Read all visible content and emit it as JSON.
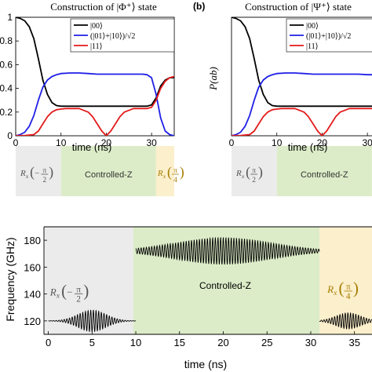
{
  "colors": {
    "black": "#000000",
    "blue": "#1f1fe6",
    "red": "#e41a1a",
    "gray_band": "#ebebeb",
    "green_band": "#dcecc8",
    "yellow_band": "#fbefcc",
    "rx_text": "#555555",
    "rx4_text": "#a77c00"
  },
  "labels": {
    "rx_neg": "Rx(−π/2)",
    "controlled_z": "Controlled-Z",
    "rx_pos": "Rx(π/4)",
    "panel_b_tag": "(b)",
    "panel_b_ylabel": "P(ab)"
  },
  "chart_data": [
    {
      "type": "line",
      "title": "Construction of |Φ⁺⟩ state",
      "xlabel": "time (ns)",
      "ylabel": "",
      "xlim": [
        0,
        35
      ],
      "ylim": [
        0,
        1
      ],
      "xticks": [
        0,
        10,
        20,
        30
      ],
      "yticks": [
        0,
        0.2,
        0.4,
        0.6,
        0.8,
        1
      ],
      "ytick_labels": [
        "0",
        "0.2",
        "0.4",
        "0.6",
        "0.8",
        "1"
      ],
      "legend_position": "top-right",
      "grid": false,
      "gate_bands": [
        {
          "label": "Rx(−π/2)",
          "start": 0,
          "end": 10
        },
        {
          "label": "Controlled-Z",
          "start": 10,
          "end": 31
        },
        {
          "label": "Rx(π/4)",
          "start": 31,
          "end": 35
        }
      ],
      "series": [
        {
          "name": "|00⟩",
          "color": "#000000",
          "x": [
            0,
            1,
            2,
            3,
            4,
            5,
            6,
            7,
            8,
            9,
            10,
            12,
            14,
            16,
            18,
            20,
            22,
            24,
            26,
            28,
            29,
            30,
            31,
            32,
            33,
            34,
            35
          ],
          "y": [
            1,
            0.99,
            0.97,
            0.92,
            0.82,
            0.65,
            0.47,
            0.35,
            0.28,
            0.255,
            0.25,
            0.25,
            0.25,
            0.25,
            0.25,
            0.25,
            0.25,
            0.25,
            0.25,
            0.25,
            0.25,
            0.26,
            0.32,
            0.42,
            0.47,
            0.49,
            0.49
          ]
        },
        {
          "name": "(|01⟩+|10⟩)/√2",
          "color": "#1f1fe6",
          "x": [
            0,
            1,
            2,
            3,
            4,
            5,
            6,
            7,
            8,
            9,
            10,
            12,
            14,
            16,
            18,
            20,
            22,
            24,
            26,
            28,
            29,
            30,
            31,
            32,
            33,
            34,
            35
          ],
          "y": [
            0,
            0.01,
            0.03,
            0.08,
            0.17,
            0.3,
            0.41,
            0.47,
            0.5,
            0.515,
            0.525,
            0.53,
            0.53,
            0.525,
            0.52,
            0.52,
            0.52,
            0.52,
            0.52,
            0.52,
            0.515,
            0.49,
            0.35,
            0.15,
            0.04,
            0.01,
            0
          ]
        },
        {
          "name": "|11⟩",
          "color": "#e41a1a",
          "x": [
            0,
            2,
            4,
            5,
            6,
            7,
            8,
            9,
            10,
            11,
            12,
            14,
            16,
            17,
            18,
            19,
            20,
            21,
            22,
            23,
            24,
            26,
            28,
            29,
            30,
            31,
            32,
            33,
            34,
            35
          ],
          "y": [
            0,
            0.002,
            0.01,
            0.04,
            0.1,
            0.16,
            0.2,
            0.22,
            0.225,
            0.23,
            0.23,
            0.23,
            0.2,
            0.16,
            0.1,
            0.04,
            0.0,
            0.04,
            0.1,
            0.16,
            0.2,
            0.23,
            0.23,
            0.23,
            0.24,
            0.3,
            0.4,
            0.46,
            0.49,
            0.5
          ]
        }
      ]
    },
    {
      "type": "line",
      "title": "Construction of |Ψ⁺⟩ state",
      "xlabel": "time (ns)",
      "ylabel": "P(ab)",
      "xlim": [
        0,
        35
      ],
      "ylim": [
        0,
        1
      ],
      "xticks": [
        0,
        10,
        20,
        30
      ],
      "legend_position": "top-right",
      "grid": false,
      "gate_bands": [
        {
          "label": "Rx(π/2)",
          "start": 0,
          "end": 10
        },
        {
          "label": "Controlled-Z",
          "start": 10,
          "end": 31
        },
        {
          "label": "Rx(π/4)",
          "start": 31,
          "end": 35
        }
      ],
      "series": [
        {
          "name": "|00⟩",
          "color": "#000000",
          "x": [
            0,
            1,
            2,
            3,
            4,
            5,
            6,
            7,
            8,
            9,
            10,
            12,
            14,
            16,
            18,
            20,
            22,
            24,
            26,
            28,
            30,
            32,
            34
          ],
          "y": [
            1,
            0.99,
            0.97,
            0.92,
            0.82,
            0.65,
            0.47,
            0.35,
            0.28,
            0.255,
            0.25,
            0.25,
            0.25,
            0.25,
            0.25,
            0.25,
            0.25,
            0.25,
            0.25,
            0.25,
            0.25,
            0.25,
            0.25
          ]
        },
        {
          "name": "(|01⟩+|10⟩)/√2",
          "color": "#1f1fe6",
          "x": [
            0,
            1,
            2,
            3,
            4,
            5,
            6,
            7,
            8,
            9,
            10,
            12,
            14,
            16,
            18,
            20,
            22,
            24,
            26,
            28,
            30,
            32,
            34
          ],
          "y": [
            0,
            0.01,
            0.03,
            0.08,
            0.17,
            0.3,
            0.41,
            0.47,
            0.5,
            0.515,
            0.525,
            0.53,
            0.53,
            0.525,
            0.52,
            0.52,
            0.52,
            0.52,
            0.52,
            0.52,
            0.515,
            0.515,
            0.515
          ]
        },
        {
          "name": "|11⟩",
          "color": "#e41a1a",
          "x": [
            0,
            2,
            4,
            5,
            6,
            7,
            8,
            9,
            10,
            11,
            12,
            14,
            16,
            17,
            18,
            19,
            20,
            21,
            22,
            23,
            24,
            26,
            28,
            30,
            32,
            34
          ],
          "y": [
            0,
            0.002,
            0.01,
            0.04,
            0.1,
            0.16,
            0.2,
            0.22,
            0.225,
            0.23,
            0.23,
            0.23,
            0.2,
            0.16,
            0.1,
            0.04,
            0.0,
            0.04,
            0.1,
            0.16,
            0.2,
            0.23,
            0.23,
            0.23,
            0.23,
            0.23
          ]
        }
      ]
    },
    {
      "type": "line",
      "title": "",
      "xlabel": "time (ns)",
      "ylabel": "Frequency (GHz)",
      "xlim": [
        -0.5,
        37
      ],
      "ylim": [
        110,
        190
      ],
      "xticks": [
        0,
        5,
        10,
        15,
        20,
        25,
        30,
        35
      ],
      "yticks": [
        120,
        140,
        160,
        180
      ],
      "grid": false,
      "gate_bands": [
        {
          "label": "Rx(−π/2)",
          "start": -0.5,
          "end": 9.7
        },
        {
          "label": "Controlled-Z",
          "start": 9.7,
          "end": 31
        },
        {
          "label": "Rx(π/4)",
          "start": 31,
          "end": 37
        }
      ],
      "pulses": [
        {
          "label": "Rx(−π/2)",
          "center_time": 5,
          "sigma": 1.6,
          "start": 0,
          "end": 10,
          "baseline": 120,
          "amplitude": 8,
          "color": "#000000"
        },
        {
          "label": "Controlled-Z",
          "center_time": 20,
          "sigma": 5.5,
          "start": 10,
          "end": 31,
          "baseline": 172,
          "amplitude": 10,
          "color": "#000000"
        },
        {
          "label": "Rx(π/4)",
          "center_time": 34.3,
          "sigma": 1.4,
          "start": 31,
          "end": 37,
          "baseline": 120,
          "amplitude": 6,
          "color": "#000000"
        }
      ]
    }
  ]
}
